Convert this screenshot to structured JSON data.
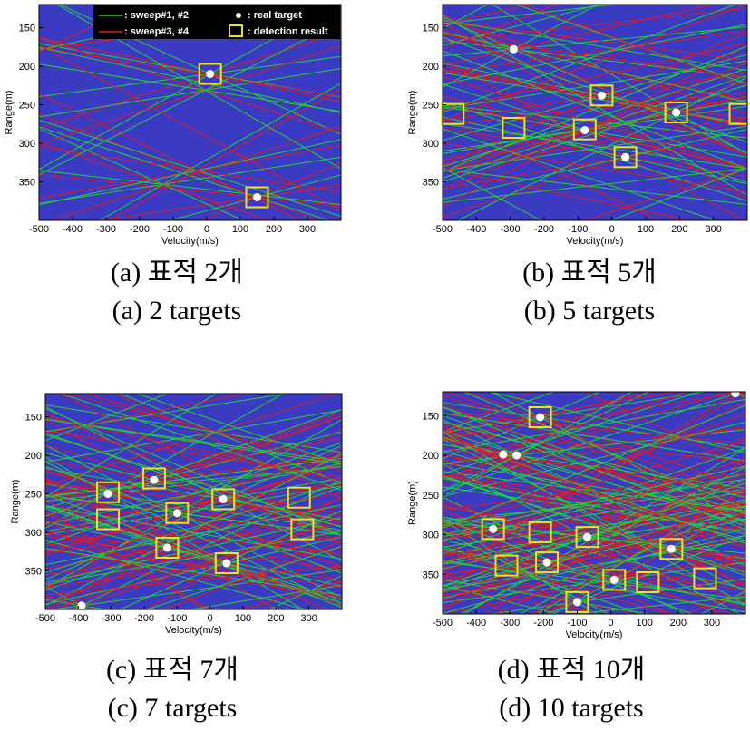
{
  "colors": {
    "background": "#3a3ac2",
    "sweep12": "#22d23a",
    "sweep34": "#e01a2a",
    "target": "#ffffff",
    "detection": "#f2e21a"
  },
  "legend": {
    "sweep12": ": sweep#1, #2",
    "sweep34": ": sweep#3, #4",
    "target": ": real target",
    "detection": ": detection result"
  },
  "captions": [
    {
      "ko": "(a)  표적  2개",
      "en": "(a)  2  targets"
    },
    {
      "ko": "(b)  표적  5개",
      "en": "(b)  5  targets"
    },
    {
      "ko": "(c)  표적  7개",
      "en": "(c)  7  targets"
    },
    {
      "ko": "(d)  표적  10개",
      "en": "(d)  10  targets"
    }
  ],
  "chart_data": [
    {
      "type": "scatter",
      "xlabel": "Velocity(m/s)",
      "ylabel": "Range(m)",
      "xlim": [
        -500,
        400
      ],
      "ylim": [
        120,
        400
      ],
      "xticks": [
        -500,
        -400,
        -300,
        -200,
        -100,
        0,
        100,
        200,
        300
      ],
      "yticks": [
        150,
        200,
        250,
        300,
        350
      ],
      "legend": "top-right",
      "targets": [
        [
          10,
          210
        ],
        [
          150,
          370
        ]
      ],
      "detections": [
        [
          10,
          210
        ],
        [
          150,
          370
        ]
      ]
    },
    {
      "type": "scatter",
      "xlabel": "Velocity(m/s)",
      "ylabel": "Range(m)",
      "xlim": [
        -500,
        400
      ],
      "ylim": [
        120,
        400
      ],
      "xticks": [
        -500,
        -400,
        -300,
        -200,
        -100,
        0,
        100,
        200,
        300
      ],
      "yticks": [
        150,
        200,
        250,
        300,
        350
      ],
      "targets": [
        [
          -290,
          178
        ],
        [
          -30,
          238
        ],
        [
          -80,
          283
        ],
        [
          40,
          318
        ],
        [
          190,
          260
        ]
      ],
      "detections": [
        [
          -470,
          262
        ],
        [
          -290,
          280
        ],
        [
          -80,
          282
        ],
        [
          -30,
          238
        ],
        [
          40,
          318
        ],
        [
          190,
          260
        ],
        [
          380,
          262
        ]
      ]
    },
    {
      "type": "scatter",
      "xlabel": "Velocity(m/s)",
      "ylabel": "Range(m)",
      "xlim": [
        -500,
        400
      ],
      "ylim": [
        120,
        400
      ],
      "xticks": [
        -500,
        -400,
        -300,
        -200,
        -100,
        0,
        100,
        200,
        300
      ],
      "yticks": [
        150,
        200,
        250,
        300,
        350
      ],
      "targets": [
        [
          -310,
          250
        ],
        [
          -170,
          232
        ],
        [
          -100,
          275
        ],
        [
          -130,
          320
        ],
        [
          40,
          257
        ],
        [
          50,
          340
        ],
        [
          -390,
          395
        ]
      ],
      "detections": [
        [
          -310,
          248
        ],
        [
          -170,
          230
        ],
        [
          -100,
          275
        ],
        [
          -130,
          320
        ],
        [
          40,
          257
        ],
        [
          50,
          340
        ],
        [
          -310,
          283
        ],
        [
          270,
          255
        ],
        [
          280,
          296
        ]
      ]
    },
    {
      "type": "scatter",
      "xlabel": "Velocity(m/s)",
      "ylabel": "Range(m)",
      "xlim": [
        -500,
        400
      ],
      "ylim": [
        120,
        400
      ],
      "xticks": [
        -500,
        -400,
        -300,
        -200,
        -100,
        0,
        100,
        200,
        300
      ],
      "yticks": [
        150,
        200,
        250,
        300,
        350
      ],
      "targets": [
        [
          -210,
          152
        ],
        [
          -320,
          199
        ],
        [
          -280,
          200
        ],
        [
          -350,
          293
        ],
        [
          -70,
          303
        ],
        [
          -190,
          335
        ],
        [
          10,
          357
        ],
        [
          180,
          318
        ],
        [
          -100,
          385
        ],
        [
          370,
          122
        ]
      ],
      "detections": [
        [
          -210,
          152
        ],
        [
          -350,
          293
        ],
        [
          -210,
          297
        ],
        [
          -70,
          303
        ],
        [
          -310,
          339
        ],
        [
          -190,
          335
        ],
        [
          10,
          357
        ],
        [
          110,
          360
        ],
        [
          180,
          318
        ],
        [
          280,
          355
        ],
        [
          -100,
          385
        ]
      ]
    }
  ]
}
